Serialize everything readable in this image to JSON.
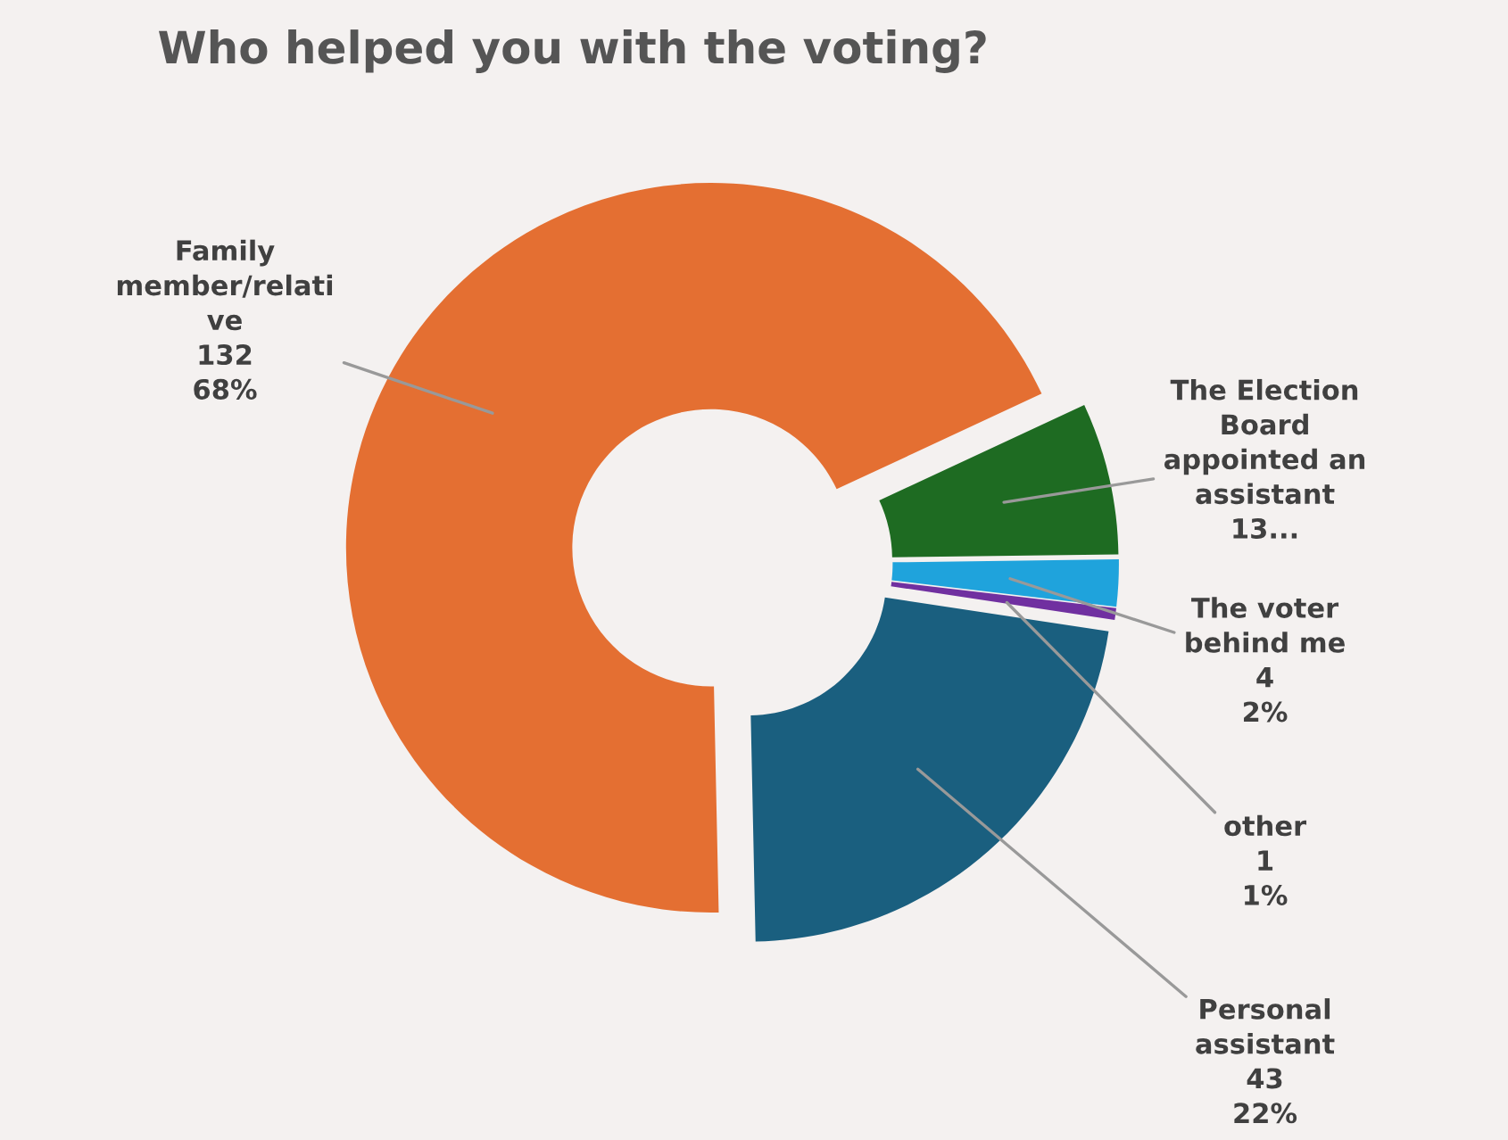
{
  "chart_data": {
    "type": "donut",
    "title": "Who helped you with the voting?",
    "categories": [
      "Family\nmember/relati\nve",
      "Personal\nassistant",
      "other",
      "The voter\nbehind me",
      "The Election\nBoard\nappointed an\nassistant"
    ],
    "values": [
      132,
      43,
      1,
      4,
      13
    ],
    "value_labels": [
      "132\n68%",
      "43\n22%",
      "1\n1%",
      "4\n2%",
      "13..."
    ],
    "colors": [
      "#e46f32",
      "#1a5f7f",
      "#7030a0",
      "#1fa3dc",
      "#1e6b22"
    ],
    "legend": false
  }
}
